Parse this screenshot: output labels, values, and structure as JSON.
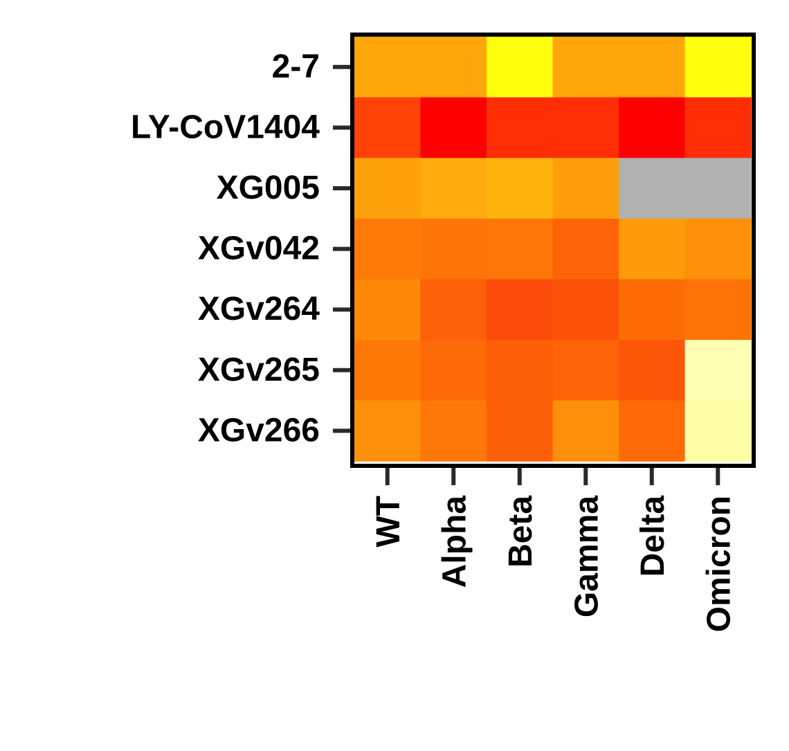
{
  "chart_data": {
    "type": "heatmap",
    "title": "",
    "xlabel": "",
    "ylabel": "",
    "rows": [
      "2-7",
      "LY-CoV1404",
      "XG005",
      "XGv042",
      "XGv264",
      "XGv265",
      "XGv266"
    ],
    "columns": [
      "WT",
      "Alpha",
      "Beta",
      "Gamma",
      "Delta",
      "Omicron"
    ],
    "missing_color": "#b0b0b0",
    "cell_colors": [
      [
        "#ffa60a",
        "#ffa60a",
        "#ffff0d",
        "#ffa60a",
        "#ffa60a",
        "#ffff0d"
      ],
      [
        "#ff4208",
        "#ff0000",
        "#ff2e05",
        "#ff2e05",
        "#ff0000",
        "#ff2e05"
      ],
      [
        "#ffa10a",
        "#ffaa0d",
        "#ffb30d",
        "#fd9e0a",
        null,
        null
      ],
      [
        "#fe7a08",
        "#fd7508",
        "#fe7608",
        "#fd6408",
        "#ff9a0a",
        "#fe8f08"
      ],
      [
        "#fe8808",
        "#fd6008",
        "#fc4a0a",
        "#fc520a",
        "#fe6c08",
        "#fe7208"
      ],
      [
        "#fe7808",
        "#fd6a08",
        "#fd5e08",
        "#fd6408",
        "#fd5608",
        "#ffffb3"
      ],
      [
        "#fe8f0a",
        "#fd7808",
        "#fd5e08",
        "#fe8f0a",
        "#fd6a08",
        "#ffffa8"
      ]
    ],
    "grid": false,
    "legend": false
  }
}
